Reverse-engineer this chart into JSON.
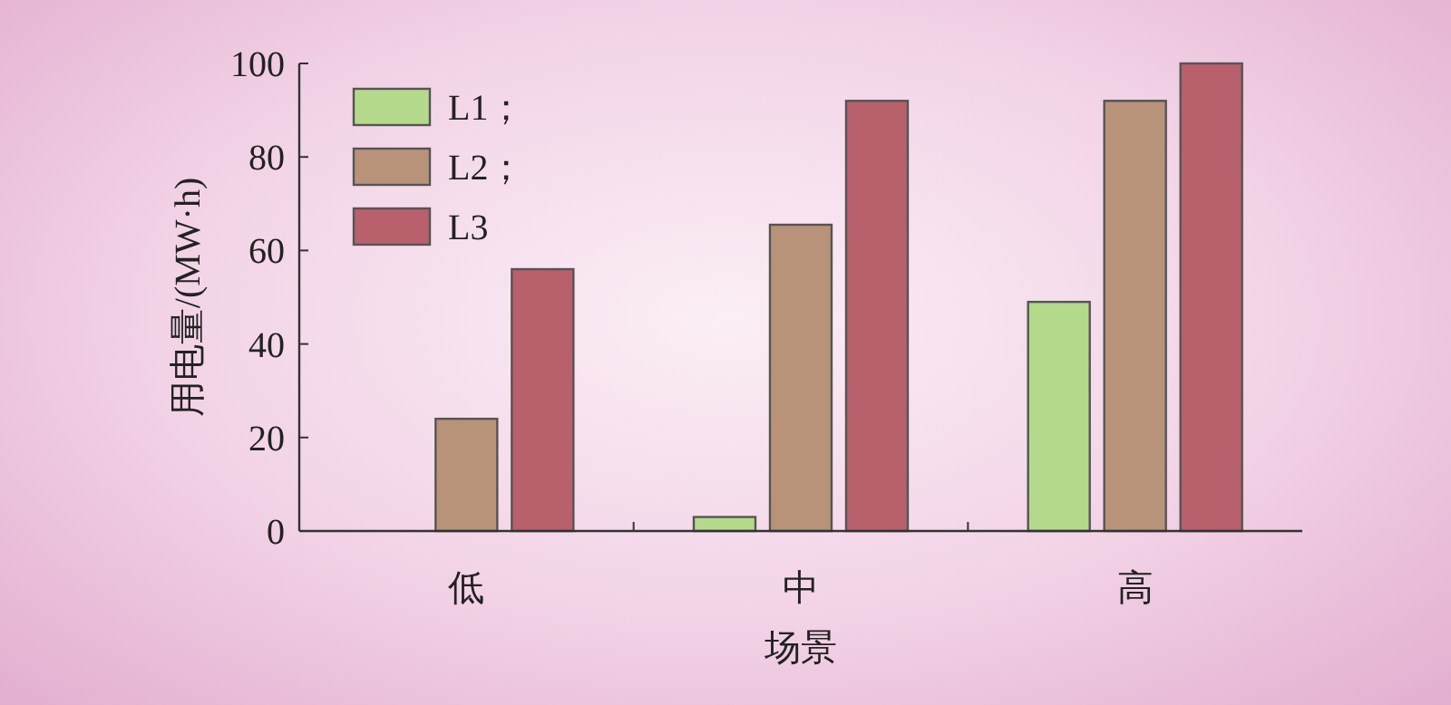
{
  "chart_data": {
    "type": "bar",
    "xlabel": "场景",
    "ylabel": "用电量/(MW·h)",
    "categories": [
      "低",
      "中",
      "高"
    ],
    "series": [
      {
        "name": "L1；",
        "color": "#b5d98a",
        "values": [
          null,
          3,
          49
        ]
      },
      {
        "name": "L2；",
        "color": "#b8937a",
        "values": [
          24,
          65.5,
          92
        ]
      },
      {
        "name": "L3",
        "color": "#b8606c",
        "values": [
          56,
          92,
          100
        ]
      }
    ],
    "ylim": [
      0,
      100
    ],
    "yticks": [
      0,
      20,
      40,
      60,
      80,
      100
    ],
    "legend": "top left",
    "grid": false
  }
}
